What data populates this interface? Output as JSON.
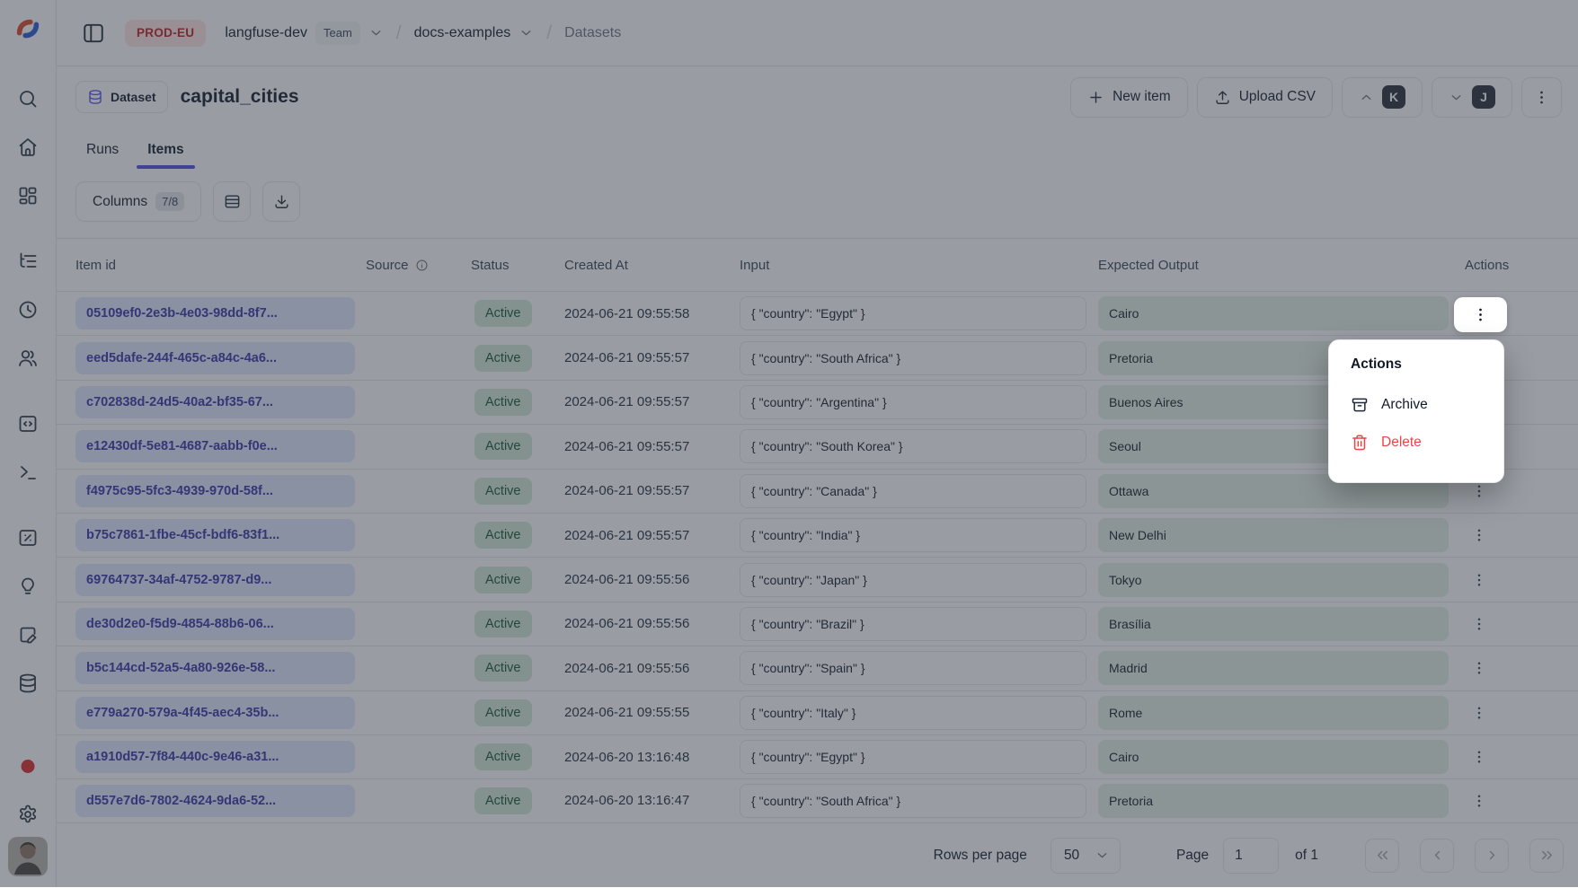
{
  "topbar": {
    "env_badge": "PROD-EU",
    "org_name": "langfuse-dev",
    "org_badge": "Team",
    "project_name": "docs-examples",
    "section": "Datasets",
    "separator": "/"
  },
  "sidebar": {
    "items": [
      "search",
      "home",
      "dashboards",
      "tracing",
      "sessions",
      "users",
      "prompts",
      "playground",
      "evaluation",
      "insights",
      "annotation-queues",
      "datasets"
    ]
  },
  "header": {
    "entity_badge": "Dataset",
    "title": "capital_cities",
    "new_item_label": "New item",
    "upload_csv_label": "Upload CSV",
    "prev_shortcut": "K",
    "next_shortcut": "J"
  },
  "tabs": [
    {
      "label": "Runs",
      "active": false
    },
    {
      "label": "Items",
      "active": true
    }
  ],
  "toolbar": {
    "columns_label": "Columns",
    "columns_count": "7/8"
  },
  "table": {
    "columns": [
      "Item id",
      "Source",
      "Status",
      "Created At",
      "Input",
      "Expected Output",
      "Actions"
    ],
    "rows": [
      {
        "id": "05109ef0-2e3b-4e03-98dd-8f7...",
        "status": "Active",
        "created_at": "2024-06-21 09:55:58",
        "input": "{ \"country\": \"Egypt\" }",
        "expected_output": "Cairo"
      },
      {
        "id": "eed5dafe-244f-465c-a84c-4a6...",
        "status": "Active",
        "created_at": "2024-06-21 09:55:57",
        "input": "{ \"country\": \"South Africa\" }",
        "expected_output": "Pretoria"
      },
      {
        "id": "c702838d-24d5-40a2-bf35-67...",
        "status": "Active",
        "created_at": "2024-06-21 09:55:57",
        "input": "{ \"country\": \"Argentina\" }",
        "expected_output": "Buenos Aires"
      },
      {
        "id": "e12430df-5e81-4687-aabb-f0e...",
        "status": "Active",
        "created_at": "2024-06-21 09:55:57",
        "input": "{ \"country\": \"South Korea\" }",
        "expected_output": "Seoul"
      },
      {
        "id": "f4975c95-5fc3-4939-970d-58f...",
        "status": "Active",
        "created_at": "2024-06-21 09:55:57",
        "input": "{ \"country\": \"Canada\" }",
        "expected_output": "Ottawa"
      },
      {
        "id": "b75c7861-1fbe-45cf-bdf6-83f1...",
        "status": "Active",
        "created_at": "2024-06-21 09:55:57",
        "input": "{ \"country\": \"India\" }",
        "expected_output": "New Delhi"
      },
      {
        "id": "69764737-34af-4752-9787-d9...",
        "status": "Active",
        "created_at": "2024-06-21 09:55:56",
        "input": "{ \"country\": \"Japan\" }",
        "expected_output": "Tokyo"
      },
      {
        "id": "de30d2e0-f5d9-4854-88b6-06...",
        "status": "Active",
        "created_at": "2024-06-21 09:55:56",
        "input": "{ \"country\": \"Brazil\" }",
        "expected_output": "Brasília"
      },
      {
        "id": "b5c144cd-52a5-4a80-926e-58...",
        "status": "Active",
        "created_at": "2024-06-21 09:55:56",
        "input": "{ \"country\": \"Spain\" }",
        "expected_output": "Madrid"
      },
      {
        "id": "e779a270-579a-4f45-aec4-35b...",
        "status": "Active",
        "created_at": "2024-06-21 09:55:55",
        "input": "{ \"country\": \"Italy\" }",
        "expected_output": "Rome"
      },
      {
        "id": "a1910d57-7f84-440c-9e46-a31...",
        "status": "Active",
        "created_at": "2024-06-20 13:16:48",
        "input": "{ \"country\": \"Egypt\" }",
        "expected_output": "Cairo"
      },
      {
        "id": "d557e7d6-7802-4624-9da6-52...",
        "status": "Active",
        "created_at": "2024-06-20 13:16:47",
        "input": "{ \"country\": \"South Africa\" }",
        "expected_output": "Pretoria"
      }
    ]
  },
  "actions_menu": {
    "title": "Actions",
    "items": [
      {
        "label": "Archive",
        "danger": false
      },
      {
        "label": "Delete",
        "danger": true
      }
    ]
  },
  "footer": {
    "rows_per_page_label": "Rows per page",
    "rows_per_page_value": "50",
    "page_label": "Page",
    "page_value": "1",
    "page_total": "of 1",
    "pagination": [
      "first-page",
      "previous-page",
      "next-page",
      "last-page"
    ]
  },
  "colors": {
    "accent": "#4f46e5",
    "danger": "#ef4444",
    "env_bg": "#fee2e2",
    "env_text": "#b91c1c",
    "badge_bg": "#f3f4f6",
    "pill_bg": "#e0e7ff",
    "pill_text": "#3730a3",
    "status_bg": "#d2e8d4",
    "status_text": "#14532d",
    "expected_bg": "#e4eee4",
    "kj_bg": "#262b35",
    "dot": "#dc2626"
  }
}
